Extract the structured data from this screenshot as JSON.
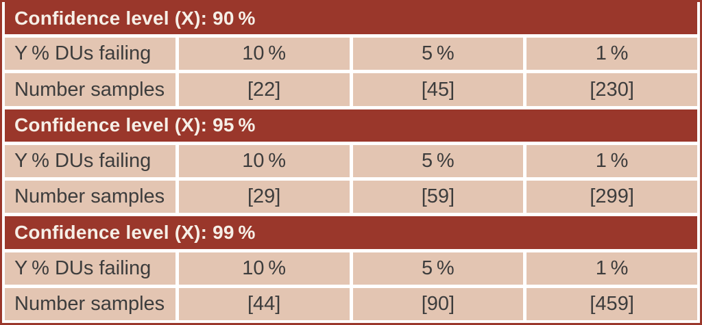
{
  "colors": {
    "header_bg": "#9a372b",
    "cell_bg": "#e3c5b2",
    "header_text": "#f6efe7",
    "body_text": "#3c3c3c",
    "gap": "#ffffff"
  },
  "sections": [
    {
      "header_label": "Confidence level (X): 90 %",
      "rows": [
        {
          "label": "Y % DUs failing",
          "values": [
            "10 %",
            "5 %",
            "1 %"
          ]
        },
        {
          "label": "Number samples",
          "values": [
            "[22]",
            "[45]",
            "[230]"
          ]
        }
      ]
    },
    {
      "header_label": "Confidence level (X): 95 %",
      "rows": [
        {
          "label": "Y % DUs failing",
          "values": [
            "10 %",
            "5 %",
            "1 %"
          ]
        },
        {
          "label": "Number samples",
          "values": [
            "[29]",
            "[59]",
            "[299]"
          ]
        }
      ]
    },
    {
      "header_label": "Confidence level (X): 99 %",
      "rows": [
        {
          "label": "Y % DUs failing",
          "values": [
            "10 %",
            "5 %",
            "1 %"
          ]
        },
        {
          "label": "Number samples",
          "values": [
            "[44]",
            "[90]",
            "[459]"
          ]
        }
      ]
    }
  ]
}
